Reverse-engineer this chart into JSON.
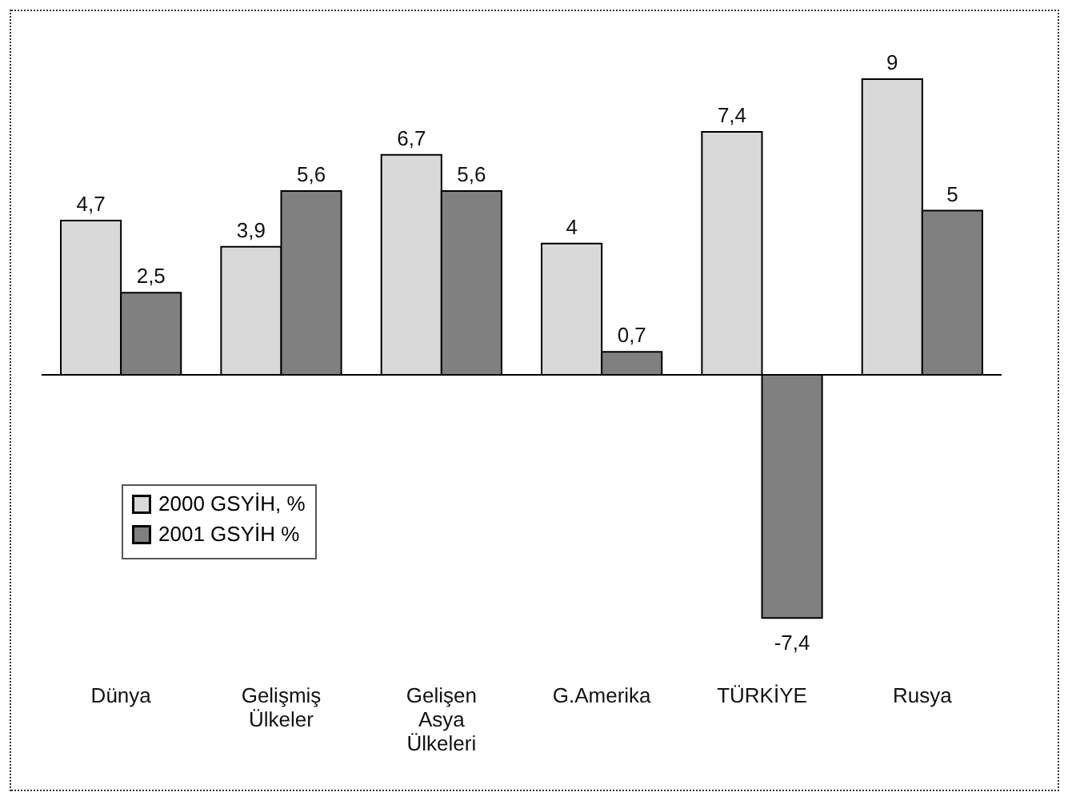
{
  "chart_data": {
    "type": "bar",
    "categories": [
      "Dünya",
      "Gelişmiş Ülkeler",
      "Gelişen Asya Ülkeleri",
      "G.Amerika",
      "TÜRKİYE",
      "Rusya"
    ],
    "series": [
      {
        "name": "2000 GSYİH, %",
        "color": "#d9d9d9",
        "values": [
          4.7,
          3.9,
          6.7,
          4,
          7.4,
          9
        ],
        "value_labels": [
          "4,7",
          "3,9",
          "6,7",
          "4",
          "7,4",
          "9"
        ]
      },
      {
        "name": "2001 GSYİH %",
        "color": "#808080",
        "values": [
          2.5,
          5.6,
          5.6,
          0.7,
          -7.4,
          5
        ],
        "value_labels": [
          "2,5",
          "5,6",
          "5,6",
          "0,7",
          "-7,4",
          "5"
        ]
      }
    ],
    "legend": "bottom left",
    "grid": false
  }
}
